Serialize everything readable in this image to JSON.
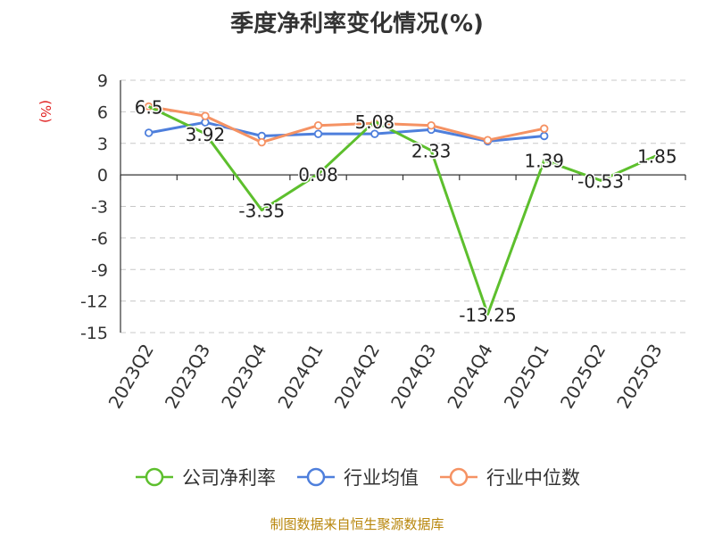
{
  "title": "季度净利率变化情况(%)",
  "unit_label": "(%)",
  "source": "制图数据来自恒生聚源数据库",
  "colors": {
    "company": "#5dbf2d",
    "industry_avg": "#4e7fdc",
    "industry_median": "#f59263",
    "grid": "#c8c8c8",
    "axis": "#333333",
    "text": "#333333"
  },
  "legend": [
    {
      "label": "公司净利率",
      "color_key": "company"
    },
    {
      "label": "行业均值",
      "color_key": "industry_avg"
    },
    {
      "label": "行业中位数",
      "color_key": "industry_median"
    }
  ],
  "chart_data": {
    "type": "line",
    "title": "季度净利率变化情况(%)",
    "ylabel": "(%)",
    "xlabel": "",
    "categories": [
      "2023Q2",
      "2023Q3",
      "2023Q4",
      "2024Q1",
      "2024Q2",
      "2024Q3",
      "2024Q4",
      "2025Q1",
      "2025Q2",
      "2025Q3"
    ],
    "yticks": [
      9,
      6,
      3,
      0,
      -3,
      -6,
      -9,
      -12,
      -15
    ],
    "ylim": [
      -15,
      9
    ],
    "grid": true,
    "legend_position": "bottom",
    "series": [
      {
        "name": "公司净利率",
        "color_key": "company",
        "values": [
          6.5,
          3.92,
          -3.35,
          0.08,
          5.08,
          2.33,
          -13.25,
          1.39,
          -0.53,
          1.85
        ],
        "labels": [
          "6.5",
          "3.92",
          "-3.35",
          "0.08",
          "5.08",
          "2.33",
          "-13.25",
          "1.39",
          "-0.53",
          "1.85"
        ],
        "markers": false
      },
      {
        "name": "行业均值",
        "color_key": "industry_avg",
        "values": [
          4.0,
          5.0,
          3.7,
          3.9,
          3.9,
          4.3,
          3.2,
          3.7,
          null,
          null
        ],
        "markers": true
      },
      {
        "name": "行业中位数",
        "color_key": "industry_median",
        "values": [
          6.5,
          5.6,
          3.1,
          4.7,
          4.9,
          4.7,
          3.3,
          4.4,
          null,
          null
        ],
        "markers": true
      }
    ]
  }
}
